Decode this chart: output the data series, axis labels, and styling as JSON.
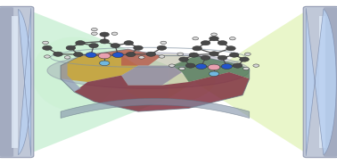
{
  "fig_width": 3.78,
  "fig_height": 1.84,
  "dpi": 100,
  "bg_color": "#ffffff",
  "atom_dark": "#484848",
  "atom_blue": "#2255cc",
  "atom_pink": "#e8a0b0",
  "atom_light_blue": "#70b8e0",
  "atom_white": "#d8d8d8",
  "atom_teal": "#60c0b0"
}
